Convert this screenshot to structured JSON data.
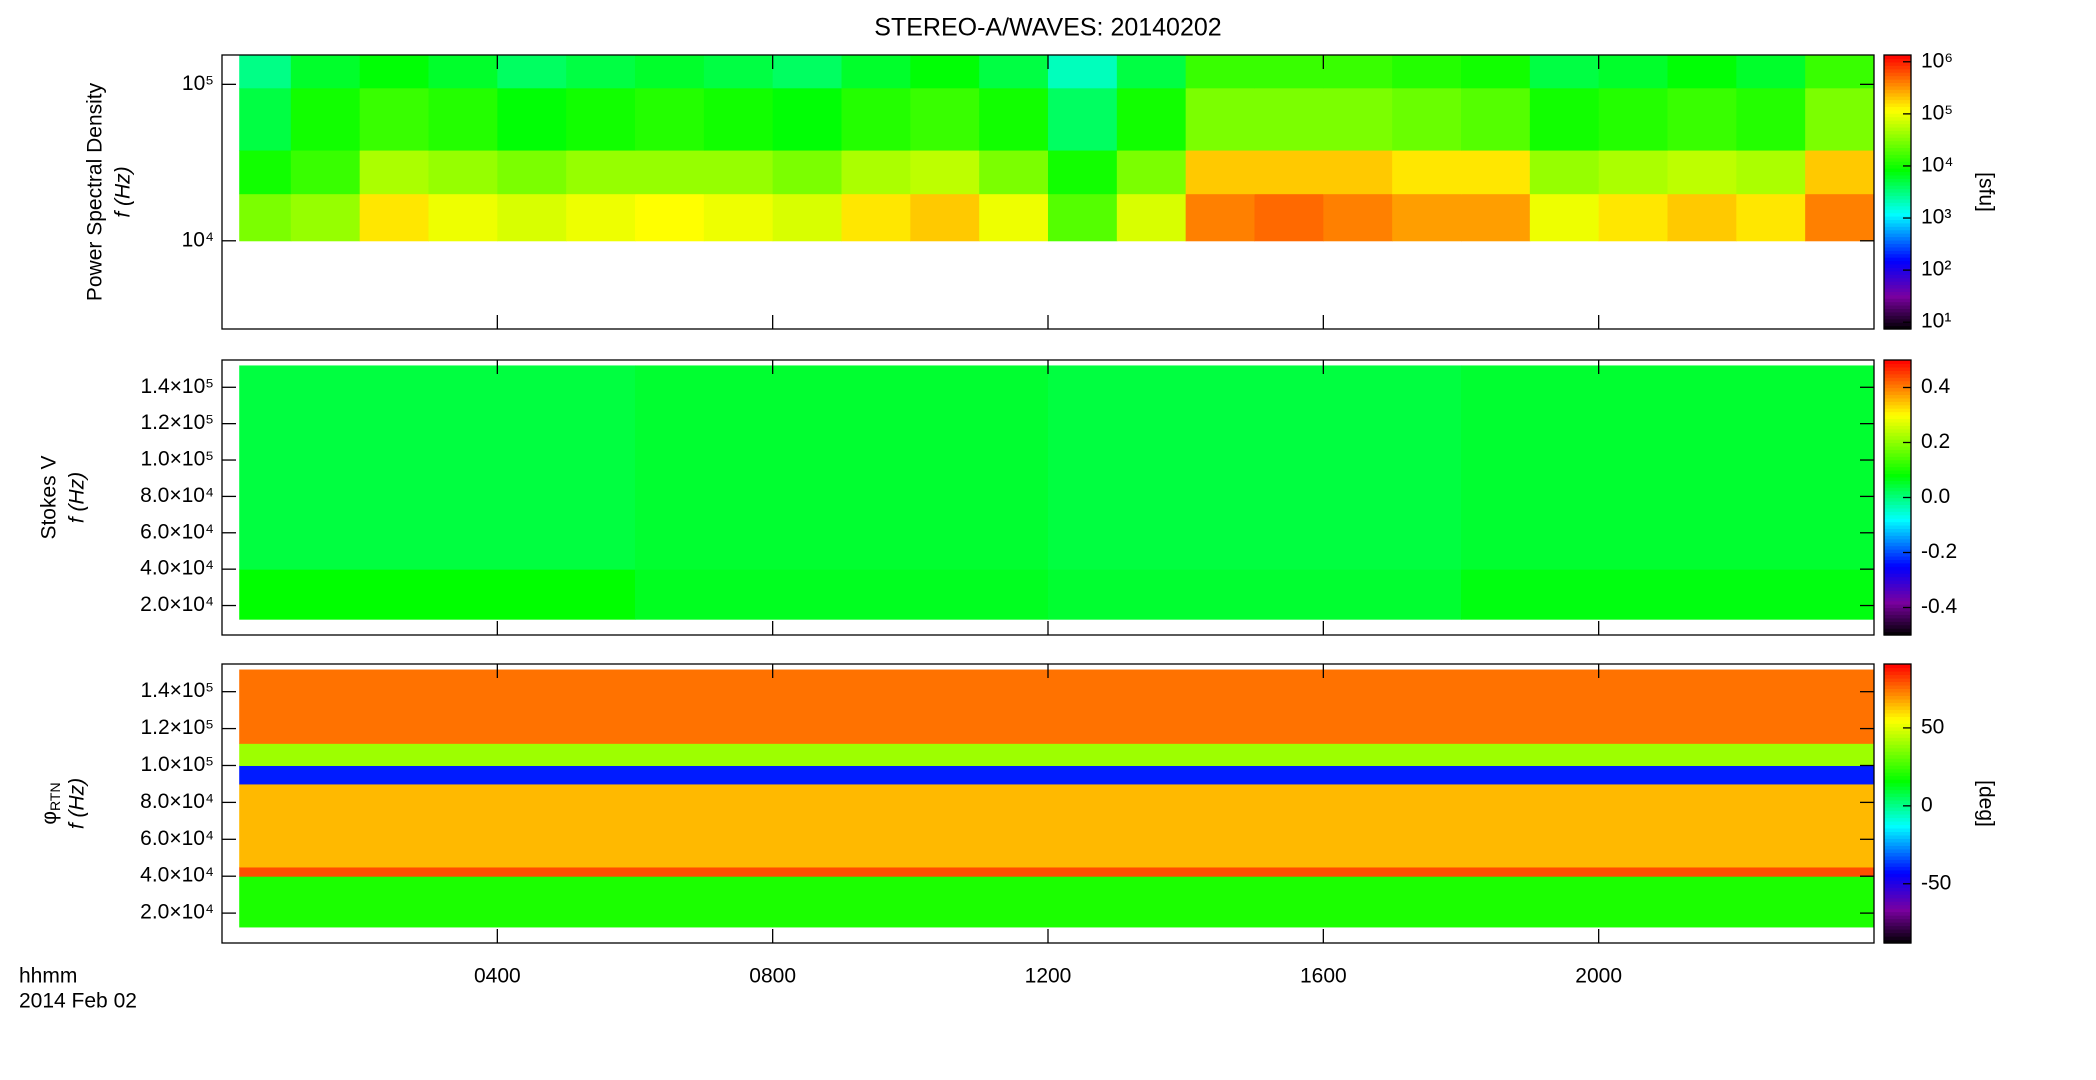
{
  "chart_data": [
    {
      "type": "heatmap",
      "title": "STEREO-A/WAVES: 20140202",
      "ylabel": "Power Spectral Density",
      "ylabel2": "f (Hz)",
      "ylog": true,
      "ylim": [
        2730,
        154000
      ],
      "yticks": [
        {
          "value": 10000,
          "label": "10⁴"
        },
        {
          "value": 100000,
          "label": "10⁵"
        }
      ],
      "xlim": [
        0,
        24
      ],
      "x": [
        0.25,
        1,
        2,
        3,
        4,
        5,
        6,
        7,
        8,
        9,
        10,
        11,
        12,
        13,
        14,
        15,
        16,
        17,
        18,
        19,
        20,
        21,
        22,
        23,
        24
      ],
      "y": [
        10000,
        20000,
        38000,
        95000,
        154000
      ],
      "values": [
        [
          30000,
          40000,
          150000,
          100000,
          80000,
          100000,
          120000,
          100000,
          80000,
          150000,
          200000,
          100000,
          20000,
          80000,
          400000,
          500000,
          400000,
          300000,
          300000,
          100000,
          150000,
          200000,
          150000,
          400000
        ],
        [
          10000,
          15000,
          50000,
          40000,
          30000,
          40000,
          40000,
          40000,
          30000,
          50000,
          60000,
          30000,
          10000,
          30000,
          200000,
          200000,
          200000,
          150000,
          150000,
          40000,
          50000,
          60000,
          50000,
          200000
        ],
        [
          5000,
          10000,
          15000,
          12000,
          8000,
          10000,
          12000,
          10000,
          8000,
          12000,
          15000,
          10000,
          4000,
          10000,
          30000,
          30000,
          30000,
          25000,
          20000,
          10000,
          12000,
          15000,
          12000,
          30000
        ],
        [
          3000,
          6000,
          8000,
          6000,
          4000,
          5000,
          6000,
          5000,
          4000,
          6000,
          8000,
          5000,
          2000,
          5000,
          15000,
          15000,
          15000,
          12000,
          10000,
          5000,
          6000,
          8000,
          6000,
          15000
        ]
      ],
      "clog": true,
      "clim": [
        7.4,
        1350000
      ],
      "cticks": [
        {
          "value": 10,
          "label": "10¹"
        },
        {
          "value": 100,
          "label": "10²"
        },
        {
          "value": 1000,
          "label": "10³"
        },
        {
          "value": 10000,
          "label": "10⁴"
        },
        {
          "value": 100000,
          "label": "10⁵"
        },
        {
          "value": 1000000,
          "label": "10⁶"
        }
      ],
      "clabel": "[sfu]"
    },
    {
      "type": "heatmap",
      "ylabel": "Stokes V",
      "ylabel2": "f (Hz)",
      "ylog": false,
      "ylim": [
        3800,
        155000
      ],
      "yticks": [
        {
          "value": 20000,
          "label": "2.0×10⁴"
        },
        {
          "value": 40000,
          "label": "4.0×10⁴"
        },
        {
          "value": 60000,
          "label": "6.0×10⁴"
        },
        {
          "value": 80000,
          "label": "8.0×10⁴"
        },
        {
          "value": 100000,
          "label": "1.0×10⁵"
        },
        {
          "value": 120000,
          "label": "1.2×10⁵"
        },
        {
          "value": 140000,
          "label": "1.4×10⁵"
        }
      ],
      "xlim": [
        0,
        24
      ],
      "x": [
        0.25,
        6,
        12,
        18,
        24
      ],
      "y": [
        12500,
        40000,
        152000
      ],
      "values": [
        [
          0.08,
          0.06,
          0.05,
          0.07
        ],
        [
          0.04,
          0.05,
          0.04,
          0.05
        ]
      ],
      "clog": false,
      "clim": [
        -0.5,
        0.5
      ],
      "cticks": [
        -0.4,
        -0.2,
        {
          "value": 0,
          "label": "0.0"
        },
        0.2,
        0.4
      ]
    },
    {
      "type": "heatmap",
      "ylabel": "φ",
      "ylabel_sub": "RTN",
      "ylabel2": "f (Hz)",
      "ylog": false,
      "ylim": [
        3800,
        155000
      ],
      "yticks": [
        {
          "value": 20000,
          "label": "2.0×10⁴"
        },
        {
          "value": 40000,
          "label": "4.0×10⁴"
        },
        {
          "value": 60000,
          "label": "6.0×10⁴"
        },
        {
          "value": 80000,
          "label": "8.0×10⁴"
        },
        {
          "value": 100000,
          "label": "1.0×10⁵"
        },
        {
          "value": 120000,
          "label": "1.2×10⁵"
        },
        {
          "value": 140000,
          "label": "1.4×10⁵"
        }
      ],
      "xlim": [
        0,
        24
      ],
      "xticks": [
        {
          "value": 4,
          "label": "0400"
        },
        {
          "value": 8,
          "label": "0800"
        },
        {
          "value": 12,
          "label": "1200"
        },
        {
          "value": 16,
          "label": "1600"
        },
        {
          "value": 20,
          "label": "2000"
        }
      ],
      "xlabel": "hhmm",
      "date": "2014 Feb 02",
      "x": [
        0.25,
        24
      ],
      "y": [
        12500,
        40000,
        45000,
        90000,
        100000,
        112000,
        152000
      ],
      "values": [
        [
          20
        ],
        [
          80
        ],
        [
          65
        ],
        [
          -40
        ],
        [
          40
        ],
        [
          75
        ]
      ],
      "clog": false,
      "clim": [
        -88,
        91
      ],
      "cticks": [
        -50,
        0,
        50
      ],
      "clabel": "[deg]"
    }
  ]
}
